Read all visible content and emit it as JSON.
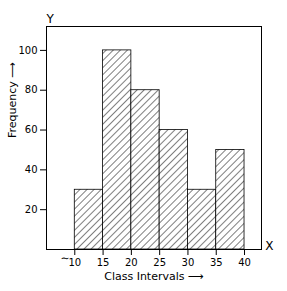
{
  "chart_data": {
    "type": "histogram",
    "bins": [
      10,
      15,
      20,
      25,
      30,
      35,
      40
    ],
    "values": [
      30,
      100,
      80,
      60,
      30,
      50
    ],
    "color": "#000000",
    "xlabel": "Class Intervals ⟶",
    "ylabel": "Frequency ⟶",
    "annotations": [
      "X",
      "Y",
      "∼"
    ],
    "xlim": [
      5,
      43
    ],
    "ylim": [
      0,
      112
    ],
    "xticks": [
      10,
      15,
      20,
      25,
      30,
      35,
      40
    ],
    "yticks": [
      20,
      40,
      60,
      80,
      100
    ],
    "grid": false
  }
}
